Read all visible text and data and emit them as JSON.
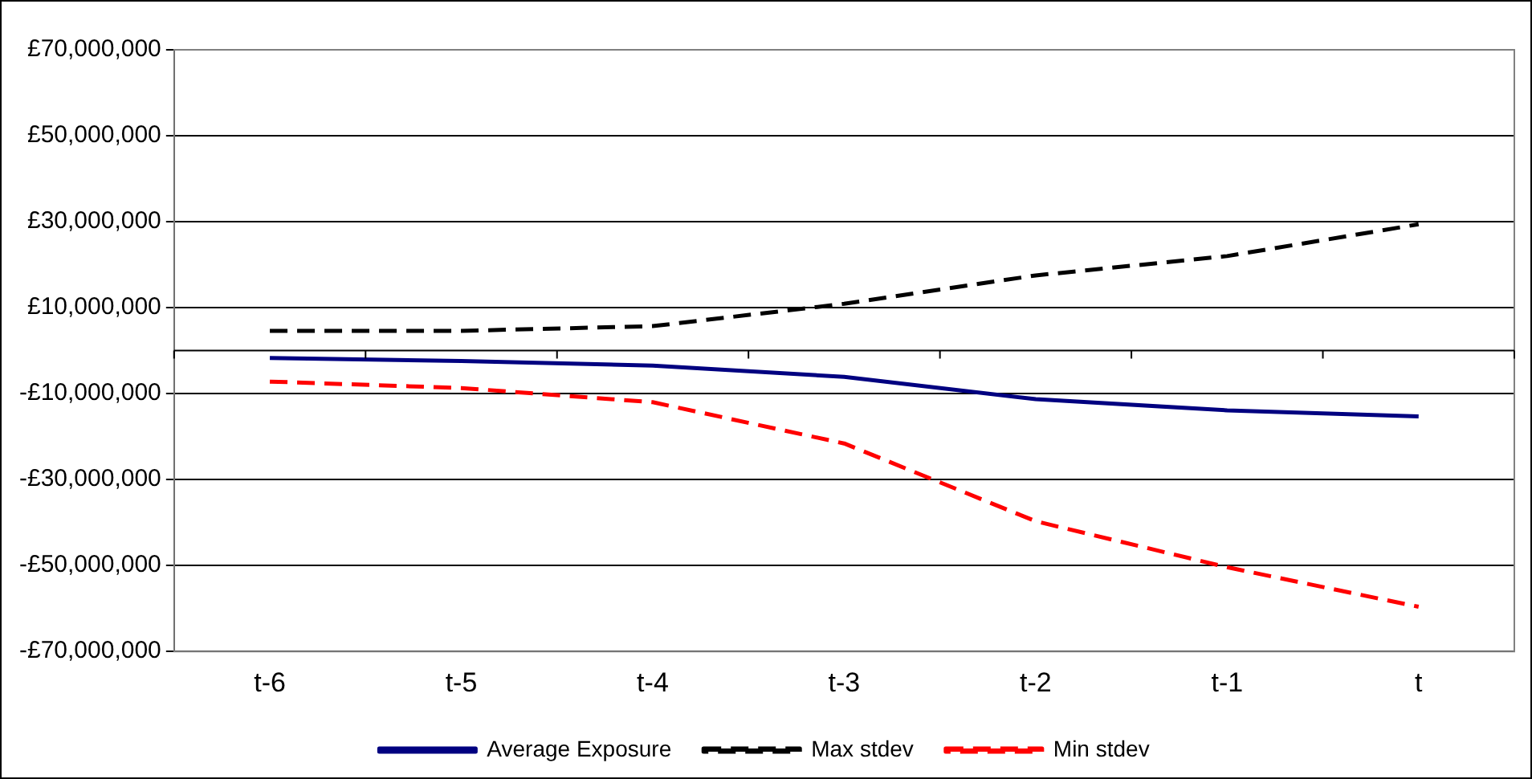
{
  "chart_data": {
    "type": "line",
    "categories": [
      "t-6",
      "t-5",
      "t-4",
      "t-3",
      "t-2",
      "t-1",
      "t"
    ],
    "series": [
      {
        "name": "Average Exposure",
        "color": "#000080",
        "line_style": "solid",
        "values": [
          -1700000,
          -2400000,
          -3500000,
          -6100000,
          -11300000,
          -13900000,
          -15300000
        ]
      },
      {
        "name": "Max stdev",
        "color": "#000000",
        "line_style": "dashed",
        "values": [
          4600000,
          4600000,
          5700000,
          10900000,
          17500000,
          22000000,
          29400000
        ]
      },
      {
        "name": "Min stdev",
        "color": "#ff0000",
        "line_style": "dashed",
        "values": [
          -7200000,
          -8700000,
          -12000000,
          -21600000,
          -39700000,
          -50400000,
          -59600000
        ]
      }
    ],
    "ylim": [
      -70000000,
      70000000
    ],
    "yticks": [
      {
        "value": 70000000,
        "label": "£70,000,000"
      },
      {
        "value": 50000000,
        "label": "£50,000,000"
      },
      {
        "value": 30000000,
        "label": "£30,000,000"
      },
      {
        "value": 10000000,
        "label": "£10,000,000"
      },
      {
        "value": -10000000,
        "label": "-£10,000,000"
      },
      {
        "value": -30000000,
        "label": "-£30,000,000"
      },
      {
        "value": -50000000,
        "label": "-£50,000,000"
      },
      {
        "value": -70000000,
        "label": "-£70,000,000"
      }
    ],
    "grid": "y",
    "legend": "bottom",
    "marker": "none"
  }
}
